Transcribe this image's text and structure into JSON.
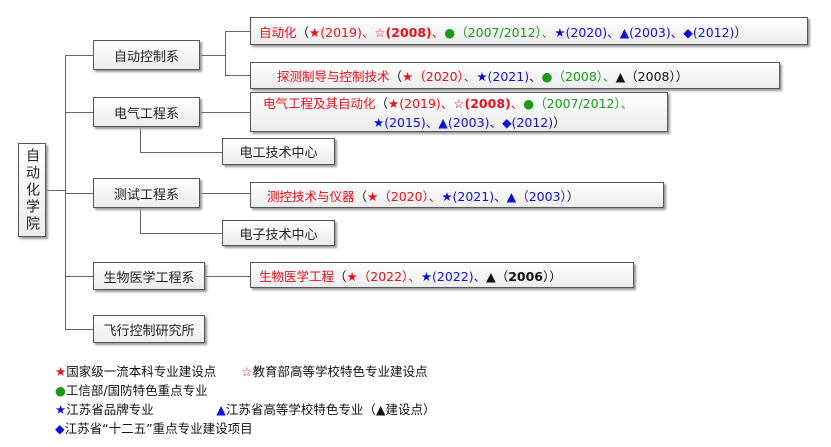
{
  "root": "自动化学院",
  "departments": [
    "自动控制系",
    "电气工程系",
    "测试工程系",
    "生物医学工程系",
    "飞行控制研究所"
  ],
  "centers": [
    "电工技术中心",
    "电子技术中心"
  ],
  "programs": [
    {
      "name": "自动化",
      "segments": [
        {
          "t": "（",
          "c": "k"
        },
        {
          "t": "★",
          "c": "r"
        },
        {
          "t": "(2019)、",
          "c": "r"
        },
        {
          "t": "☆",
          "c": "r"
        },
        {
          "t": "(2008)",
          "c": "r bd"
        },
        {
          "t": "、",
          "c": "r"
        },
        {
          "t": "●",
          "c": "g"
        },
        {
          "t": "（2007/2012）、",
          "c": "g"
        },
        {
          "t": "★(2020)、▲(2003)、◆(2012)",
          "c": "b"
        },
        {
          "t": "）",
          "c": "k"
        }
      ]
    },
    {
      "name": "探测制导与控制技术",
      "segments": [
        {
          "t": "（",
          "c": "k"
        },
        {
          "t": "★（2020）、",
          "c": "r"
        },
        {
          "t": "★(2021)、",
          "c": "b"
        },
        {
          "t": "●（2008）、",
          "c": "g"
        },
        {
          "t": "▲（2008））",
          "c": "k"
        }
      ]
    },
    {
      "name": "电气工程及其自动化",
      "segments": [
        {
          "t": "（",
          "c": "k"
        },
        {
          "t": "★(2019)、☆",
          "c": "r"
        },
        {
          "t": "(2008)",
          "c": "r bd"
        },
        {
          "t": "、",
          "c": "r"
        },
        {
          "t": "●（2007/2012）、",
          "c": "g"
        }
      ],
      "line2": [
        {
          "t": "★(2015)、▲(2003)、◆(2012)",
          "c": "b"
        },
        {
          "t": "）",
          "c": "k"
        }
      ]
    },
    {
      "name": "测控技术与仪器",
      "segments": [
        {
          "t": "（",
          "c": "k"
        },
        {
          "t": "★（2020）、",
          "c": "r"
        },
        {
          "t": "★(2021)、▲（2003）",
          "c": "b"
        },
        {
          "t": "）",
          "c": "k"
        }
      ]
    },
    {
      "name": "生物医学工程",
      "segments": [
        {
          "t": "（",
          "c": "k"
        },
        {
          "t": "★（2022）、",
          "c": "r"
        },
        {
          "t": "★(2022)、",
          "c": "b"
        },
        {
          "t": "▲（",
          "c": "k"
        },
        {
          "t": "2006",
          "c": "k bd"
        },
        {
          "t": "））",
          "c": "k"
        }
      ]
    }
  ],
  "legend": [
    [
      {
        "t": "★",
        "c": "r"
      },
      {
        "t": "国家级一流本科专业建设点　　",
        "c": "k"
      },
      {
        "t": "☆",
        "c": "r"
      },
      {
        "t": "教育部高等学校特色专业建设点",
        "c": "k"
      }
    ],
    [
      {
        "t": "●",
        "c": "g"
      },
      {
        "t": "工信部/国防特色重点专业",
        "c": "k"
      }
    ],
    [
      {
        "t": "★",
        "c": "b"
      },
      {
        "t": "江苏省品牌专业　　　　　",
        "c": "k"
      },
      {
        "t": "▲",
        "c": "b"
      },
      {
        "t": "江苏省高等学校特色专业（▲建设点）",
        "c": "k"
      }
    ],
    [
      {
        "t": "◆",
        "c": "b"
      },
      {
        "t": "江苏省“十二五”重点专业建设项目",
        "c": "k"
      }
    ]
  ],
  "colors": {
    "red": "#e8101a",
    "green": "#1a9a1a",
    "blue": "#1010d8"
  }
}
